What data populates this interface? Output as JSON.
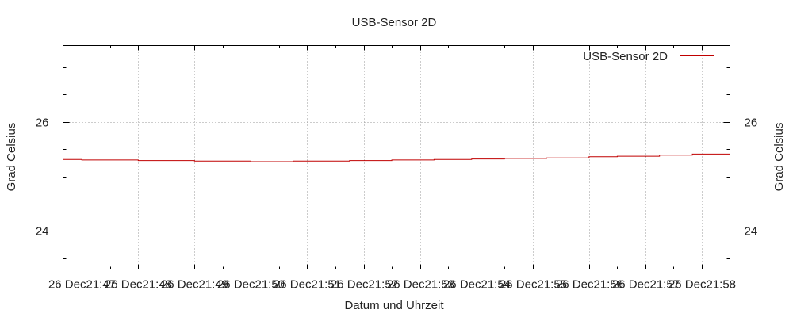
{
  "chart_data": {
    "type": "line",
    "title": "USB-Sensor 2D",
    "xlabel": "Datum und Uhrzeit",
    "ylabel": "Grad Celsius",
    "y2label": "Grad Celsius",
    "xlim": [
      "26 Dec 21:46:40",
      "26 Dec 21:58:30"
    ],
    "ylim": [
      23.3,
      27.4
    ],
    "grid": true,
    "legend_position": "top-right",
    "x_ticks": [
      {
        "t": "26 Dec 21:47",
        "label": "26 Dec21:47"
      },
      {
        "t": "26 Dec 21:48",
        "label": "26 Dec21:48"
      },
      {
        "t": "26 Dec 21:49",
        "label": "26 Dec21:49"
      },
      {
        "t": "26 Dec 21:50",
        "label": "26 Dec21:50"
      },
      {
        "t": "26 Dec 21:51",
        "label": "26 Dec21:51"
      },
      {
        "t": "26 Dec 21:52",
        "label": "26 Dec21:52"
      },
      {
        "t": "26 Dec 21:53",
        "label": "26 Dec21:53"
      },
      {
        "t": "26 Dec 21:54",
        "label": "26 Dec21:54"
      },
      {
        "t": "26 Dec 21:55",
        "label": "26 Dec21:55"
      },
      {
        "t": "26 Dec 21:56",
        "label": "26 Dec21:56"
      },
      {
        "t": "26 Dec 21:57",
        "label": "26 Dec21:57"
      },
      {
        "t": "26 Dec 21:58",
        "label": "26 Dec21:58"
      }
    ],
    "y_ticks": [
      24,
      26
    ],
    "series": [
      {
        "name": "USB-Sensor 2D",
        "color": "#c00000",
        "points": [
          {
            "x": "26 Dec 21:46:40",
            "y": 25.31
          },
          {
            "x": "26 Dec 21:47:00",
            "y": 25.31
          },
          {
            "x": "26 Dec 21:47:00",
            "y": 25.3
          },
          {
            "x": "26 Dec 21:48:00",
            "y": 25.3
          },
          {
            "x": "26 Dec 21:48:00",
            "y": 25.29
          },
          {
            "x": "26 Dec 21:49:00",
            "y": 25.29
          },
          {
            "x": "26 Dec 21:49:00",
            "y": 25.28
          },
          {
            "x": "26 Dec 21:50:00",
            "y": 25.28
          },
          {
            "x": "26 Dec 21:50:00",
            "y": 25.27
          },
          {
            "x": "26 Dec 21:50:45",
            "y": 25.27
          },
          {
            "x": "26 Dec 21:50:45",
            "y": 25.28
          },
          {
            "x": "26 Dec 21:51:45",
            "y": 25.28
          },
          {
            "x": "26 Dec 21:51:45",
            "y": 25.29
          },
          {
            "x": "26 Dec 21:52:30",
            "y": 25.29
          },
          {
            "x": "26 Dec 21:52:30",
            "y": 25.3
          },
          {
            "x": "26 Dec 21:53:15",
            "y": 25.3
          },
          {
            "x": "26 Dec 21:53:15",
            "y": 25.31
          },
          {
            "x": "26 Dec 21:53:55",
            "y": 25.31
          },
          {
            "x": "26 Dec 21:53:55",
            "y": 25.32
          },
          {
            "x": "26 Dec 21:54:30",
            "y": 25.32
          },
          {
            "x": "26 Dec 21:54:30",
            "y": 25.33
          },
          {
            "x": "26 Dec 21:55:15",
            "y": 25.33
          },
          {
            "x": "26 Dec 21:55:15",
            "y": 25.34
          },
          {
            "x": "26 Dec 21:56:00",
            "y": 25.34
          },
          {
            "x": "26 Dec 21:56:00",
            "y": 25.36
          },
          {
            "x": "26 Dec 21:56:30",
            "y": 25.36
          },
          {
            "x": "26 Dec 21:56:30",
            "y": 25.37
          },
          {
            "x": "26 Dec 21:57:15",
            "y": 25.37
          },
          {
            "x": "26 Dec 21:57:15",
            "y": 25.39
          },
          {
            "x": "26 Dec 21:57:50",
            "y": 25.39
          },
          {
            "x": "26 Dec 21:57:50",
            "y": 25.41
          },
          {
            "x": "26 Dec 21:58:30",
            "y": 25.41
          }
        ]
      }
    ]
  }
}
